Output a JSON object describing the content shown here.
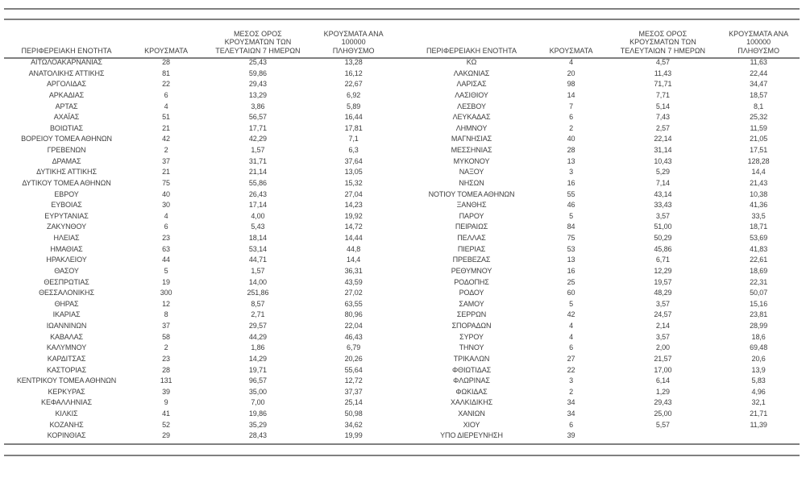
{
  "headers": {
    "region": "ΠΕΡΙΦΕΡΕΙΑΚΗ ΕΝΟΤΗΤΑ",
    "cases": "ΚΡΟΥΣΜΑΤΑ",
    "avg_7day": "ΜΕΣΟΣ ΟΡΟΣ\nΚΡΟΥΣΜΑΤΩΝ ΤΩΝ\nΤΕΛΕΥΤΑΙΩΝ 7 ΗΜΕΡΩΝ",
    "per_100k": "ΚΡΟΥΣΜΑΤΑ ΑΝΑ 100000\nΠΛΗΘΥΣΜΟ"
  },
  "colors": {
    "text": "#3d3d3d",
    "rule": "#808080",
    "background": "#ffffff"
  },
  "tables": {
    "left": {
      "rows": [
        [
          "ΑΙΤΩΛΟΑΚΑΡΝΑΝΙΑΣ",
          "28",
          "25,43",
          "13,28"
        ],
        [
          "ΑΝΑΤΟΛΙΚΗΣ ΑΤΤΙΚΗΣ",
          "81",
          "59,86",
          "16,12"
        ],
        [
          "ΑΡΓΟΛΙΔΑΣ",
          "22",
          "29,43",
          "22,67"
        ],
        [
          "ΑΡΚΑΔΙΑΣ",
          "6",
          "13,29",
          "6,92"
        ],
        [
          "ΑΡΤΑΣ",
          "4",
          "3,86",
          "5,89"
        ],
        [
          "ΑΧΑΪΑΣ",
          "51",
          "56,57",
          "16,44"
        ],
        [
          "ΒΟΙΩΤΙΑΣ",
          "21",
          "17,71",
          "17,81"
        ],
        [
          "ΒΟΡΕΙΟΥ ΤΟΜΕΑ ΑΘΗΝΩΝ",
          "42",
          "42,29",
          "7,1"
        ],
        [
          "ΓΡΕΒΕΝΩΝ",
          "2",
          "1,57",
          "6,3"
        ],
        [
          "ΔΡΑΜΑΣ",
          "37",
          "31,71",
          "37,64"
        ],
        [
          "ΔΥΤΙΚΗΣ ΑΤΤΙΚΗΣ",
          "21",
          "21,14",
          "13,05"
        ],
        [
          "ΔΥΤΙΚΟΥ ΤΟΜΕΑ ΑΘΗΝΩΝ",
          "75",
          "55,86",
          "15,32"
        ],
        [
          "ΕΒΡΟΥ",
          "40",
          "26,43",
          "27,04"
        ],
        [
          "ΕΥΒΟΙΑΣ",
          "30",
          "17,14",
          "14,23"
        ],
        [
          "ΕΥΡΥΤΑΝΙΑΣ",
          "4",
          "4,00",
          "19,92"
        ],
        [
          "ΖΑΚΥΝΘΟΥ",
          "6",
          "5,43",
          "14,72"
        ],
        [
          "ΗΛΕΙΑΣ",
          "23",
          "18,14",
          "14,44"
        ],
        [
          "ΗΜΑΘΙΑΣ",
          "63",
          "53,14",
          "44,8"
        ],
        [
          "ΗΡΑΚΛΕΙΟΥ",
          "44",
          "44,71",
          "14,4"
        ],
        [
          "ΘΑΣΟΥ",
          "5",
          "1,57",
          "36,31"
        ],
        [
          "ΘΕΣΠΡΩΤΙΑΣ",
          "19",
          "14,00",
          "43,59"
        ],
        [
          "ΘΕΣΣΑΛΟΝΙΚΗΣ",
          "300",
          "251,86",
          "27,02"
        ],
        [
          "ΘΗΡΑΣ",
          "12",
          "8,57",
          "63,55"
        ],
        [
          "ΙΚΑΡΙΑΣ",
          "8",
          "2,71",
          "80,96"
        ],
        [
          "ΙΩΑΝΝΙΝΩΝ",
          "37",
          "29,57",
          "22,04"
        ],
        [
          "ΚΑΒΑΛΑΣ",
          "58",
          "44,29",
          "46,43"
        ],
        [
          "ΚΑΛΥΜΝΟΥ",
          "2",
          "1,86",
          "6,79"
        ],
        [
          "ΚΑΡΔΙΤΣΑΣ",
          "23",
          "14,29",
          "20,26"
        ],
        [
          "ΚΑΣΤΟΡΙΑΣ",
          "28",
          "19,71",
          "55,64"
        ],
        [
          "ΚΕΝΤΡΙΚΟΥ ΤΟΜΕΑ ΑΘΗΝΩΝ",
          "131",
          "96,57",
          "12,72"
        ],
        [
          "ΚΕΡΚΥΡΑΣ",
          "39",
          "35,00",
          "37,37"
        ],
        [
          "ΚΕΦΑΛΛΗΝΙΑΣ",
          "9",
          "7,00",
          "25,14"
        ],
        [
          "ΚΙΛΚΙΣ",
          "41",
          "19,86",
          "50,98"
        ],
        [
          "ΚΟΖΑΝΗΣ",
          "52",
          "35,29",
          "34,62"
        ],
        [
          "ΚΟΡΙΝΘΙΑΣ",
          "29",
          "28,43",
          "19,99"
        ]
      ]
    },
    "right": {
      "rows": [
        [
          "ΚΩ",
          "4",
          "4,57",
          "11,63"
        ],
        [
          "ΛΑΚΩΝΙΑΣ",
          "20",
          "11,43",
          "22,44"
        ],
        [
          "ΛΑΡΙΣΑΣ",
          "98",
          "71,71",
          "34,47"
        ],
        [
          "ΛΑΣΙΘΙΟΥ",
          "14",
          "7,71",
          "18,57"
        ],
        [
          "ΛΕΣΒΟΥ",
          "7",
          "5,14",
          "8,1"
        ],
        [
          "ΛΕΥΚΑΔΑΣ",
          "6",
          "7,43",
          "25,32"
        ],
        [
          "ΛΗΜΝΟΥ",
          "2",
          "2,57",
          "11,59"
        ],
        [
          "ΜΑΓΝΗΣΙΑΣ",
          "40",
          "22,14",
          "21,05"
        ],
        [
          "ΜΕΣΣΗΝΙΑΣ",
          "28",
          "31,14",
          "17,51"
        ],
        [
          "ΜΥΚΟΝΟΥ",
          "13",
          "10,43",
          "128,28"
        ],
        [
          "ΝΑΞΟΥ",
          "3",
          "5,29",
          "14,4"
        ],
        [
          "ΝΗΣΩΝ",
          "16",
          "7,14",
          "21,43"
        ],
        [
          "ΝΟΤΙΟΥ ΤΟΜΕΑ ΑΘΗΝΩΝ",
          "55",
          "43,14",
          "10,38"
        ],
        [
          "ΞΑΝΘΗΣ",
          "46",
          "33,43",
          "41,36"
        ],
        [
          "ΠΑΡΟΥ",
          "5",
          "3,57",
          "33,5"
        ],
        [
          "ΠΕΙΡΑΙΩΣ",
          "84",
          "51,00",
          "18,71"
        ],
        [
          "ΠΕΛΛΑΣ",
          "75",
          "50,29",
          "53,69"
        ],
        [
          "ΠΙΕΡΙΑΣ",
          "53",
          "45,86",
          "41,83"
        ],
        [
          "ΠΡΕΒΕΖΑΣ",
          "13",
          "6,71",
          "22,61"
        ],
        [
          "ΡΕΘΥΜΝΟΥ",
          "16",
          "12,29",
          "18,69"
        ],
        [
          "ΡΟΔΟΠΗΣ",
          "25",
          "19,57",
          "22,31"
        ],
        [
          "ΡΟΔΟΥ",
          "60",
          "48,29",
          "50,07"
        ],
        [
          "ΣΑΜΟΥ",
          "5",
          "3,57",
          "15,16"
        ],
        [
          "ΣΕΡΡΩΝ",
          "42",
          "24,57",
          "23,81"
        ],
        [
          "ΣΠΟΡΑΔΩΝ",
          "4",
          "2,14",
          "28,99"
        ],
        [
          "ΣΥΡΟΥ",
          "4",
          "3,57",
          "18,6"
        ],
        [
          "ΤΗΝΟΥ",
          "6",
          "2,00",
          "69,48"
        ],
        [
          "ΤΡΙΚΑΛΩΝ",
          "27",
          "21,57",
          "20,6"
        ],
        [
          "ΦΘΙΩΤΙΔΑΣ",
          "22",
          "17,00",
          "13,9"
        ],
        [
          "ΦΛΩΡΙΝΑΣ",
          "3",
          "6,14",
          "5,83"
        ],
        [
          "ΦΩΚΙΔΑΣ",
          "2",
          "1,29",
          "4,96"
        ],
        [
          "ΧΑΛΚΙΔΙΚΗΣ",
          "34",
          "29,43",
          "32,1"
        ],
        [
          "ΧΑΝΙΩΝ",
          "34",
          "25,00",
          "21,71"
        ],
        [
          "ΧΙΟΥ",
          "6",
          "5,57",
          "11,39"
        ],
        [
          "ΥΠΟ ΔΙΕΡΕΥΝΗΣΗ",
          "39",
          "",
          ""
        ]
      ]
    }
  }
}
